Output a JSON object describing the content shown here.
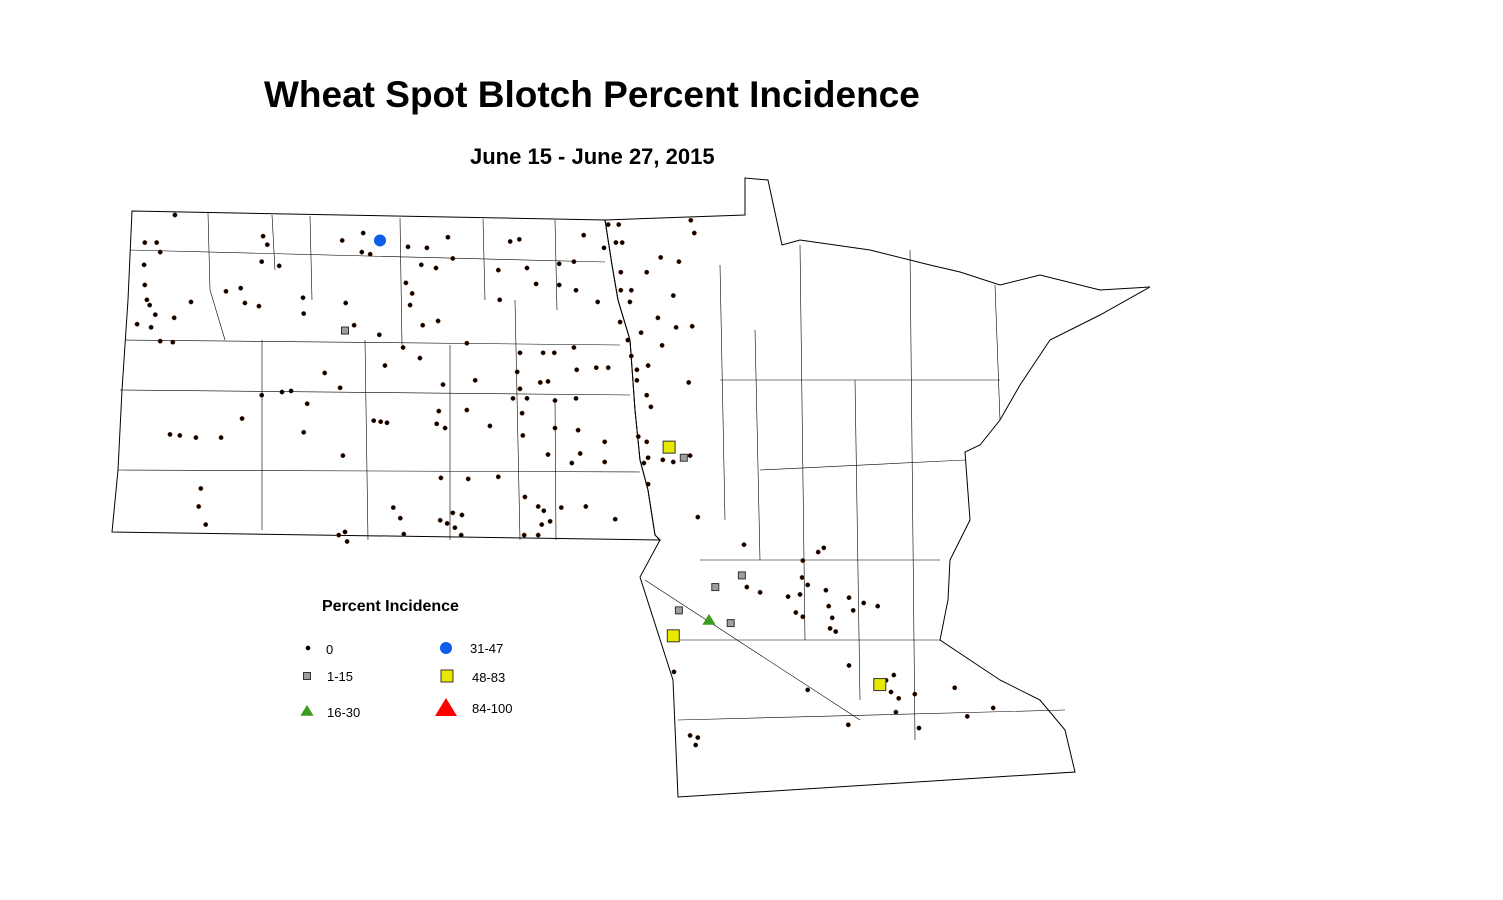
{
  "title": "Wheat Spot Blotch Percent Incidence",
  "subtitle": "June 15 - June 27, 2015",
  "legend": {
    "title": "Percent Incidence",
    "classes": [
      {
        "label": "0",
        "symbol": "dot",
        "color": "#000000"
      },
      {
        "label": "1-15",
        "symbol": "square",
        "color": "#9e9e9e"
      },
      {
        "label": "16-30",
        "symbol": "triangle",
        "color": "#3c9a1e"
      },
      {
        "label": "31-47",
        "symbol": "circle",
        "color": "#0a5ee8"
      },
      {
        "label": "48-83",
        "symbol": "square",
        "color": "#e8e800"
      },
      {
        "label": "84-100",
        "symbol": "triangle",
        "color": "#ff0000"
      }
    ]
  },
  "observations": {
    "0": [
      [
        -103.33,
        49.0
      ],
      [
        -103.76,
        48.74
      ],
      [
        -103.59,
        48.74
      ],
      [
        -103.54,
        48.65
      ],
      [
        -103.77,
        48.53
      ],
      [
        -102.07,
        48.8
      ],
      [
        -102.01,
        48.72
      ],
      [
        -102.09,
        48.56
      ],
      [
        -101.84,
        48.52
      ],
      [
        -100.94,
        48.76
      ],
      [
        -100.64,
        48.83
      ],
      [
        -100.66,
        48.65
      ],
      [
        -100.54,
        48.63
      ],
      [
        -100.0,
        48.7
      ],
      [
        -99.73,
        48.69
      ],
      [
        -99.43,
        48.79
      ],
      [
        -99.36,
        48.59
      ],
      [
        -99.6,
        48.5
      ],
      [
        -99.81,
        48.53
      ],
      [
        -98.54,
        48.75
      ],
      [
        -98.41,
        48.77
      ],
      [
        -98.71,
        48.48
      ],
      [
        -98.3,
        48.5
      ],
      [
        -97.84,
        48.54
      ],
      [
        -97.63,
        48.56
      ],
      [
        -97.49,
        48.81
      ],
      [
        -97.14,
        48.91
      ],
      [
        -96.99,
        48.91
      ],
      [
        -97.03,
        48.74
      ],
      [
        -96.94,
        48.74
      ],
      [
        -97.2,
        48.69
      ],
      [
        -95.96,
        48.95
      ],
      [
        -95.91,
        48.83
      ],
      [
        -96.13,
        48.56
      ],
      [
        -96.39,
        48.6
      ],
      [
        -102.6,
        48.28
      ],
      [
        -102.39,
        48.31
      ],
      [
        -102.33,
        48.17
      ],
      [
        -102.13,
        48.14
      ],
      [
        -103.76,
        48.34
      ],
      [
        -103.73,
        48.2
      ],
      [
        -103.69,
        48.15
      ],
      [
        -103.1,
        48.18
      ],
      [
        -101.5,
        48.22
      ],
      [
        -101.49,
        48.07
      ],
      [
        -100.89,
        48.17
      ],
      [
        -100.03,
        48.36
      ],
      [
        -99.94,
        48.26
      ],
      [
        -99.97,
        48.15
      ],
      [
        -99.79,
        47.96
      ],
      [
        -99.57,
        48.0
      ],
      [
        -98.69,
        48.2
      ],
      [
        -98.17,
        48.35
      ],
      [
        -97.84,
        48.34
      ],
      [
        -97.6,
        48.29
      ],
      [
        -97.29,
        48.18
      ],
      [
        -96.96,
        48.46
      ],
      [
        -96.96,
        48.29
      ],
      [
        -96.81,
        48.29
      ],
      [
        -96.83,
        48.18
      ],
      [
        -96.59,
        48.46
      ],
      [
        -96.21,
        48.24
      ],
      [
        -96.43,
        48.03
      ],
      [
        -96.17,
        47.94
      ],
      [
        -95.94,
        47.95
      ],
      [
        -103.87,
        47.97
      ],
      [
        -103.67,
        47.94
      ],
      [
        -103.54,
        47.81
      ],
      [
        -103.36,
        47.8
      ],
      [
        -103.61,
        48.06
      ],
      [
        -103.34,
        48.03
      ],
      [
        -100.77,
        47.96
      ],
      [
        -100.41,
        47.87
      ],
      [
        -100.07,
        47.75
      ],
      [
        -100.33,
        47.58
      ],
      [
        -99.16,
        47.79
      ],
      [
        -98.4,
        47.7
      ],
      [
        -98.07,
        47.7
      ],
      [
        -97.91,
        47.7
      ],
      [
        -97.63,
        47.75
      ],
      [
        -96.97,
        47.99
      ],
      [
        -96.86,
        47.82
      ],
      [
        -96.81,
        47.67
      ],
      [
        -96.73,
        47.54
      ],
      [
        -96.57,
        47.58
      ],
      [
        -96.37,
        47.77
      ],
      [
        -96.67,
        47.89
      ],
      [
        -101.19,
        47.51
      ],
      [
        -100.97,
        47.37
      ],
      [
        -101.67,
        47.34
      ],
      [
        -101.8,
        47.33
      ],
      [
        -102.09,
        47.3
      ],
      [
        -101.44,
        47.22
      ],
      [
        -99.83,
        47.65
      ],
      [
        -99.04,
        47.44
      ],
      [
        -99.5,
        47.4
      ],
      [
        -98.44,
        47.52
      ],
      [
        -98.4,
        47.36
      ],
      [
        -98.11,
        47.42
      ],
      [
        -98.0,
        47.43
      ],
      [
        -98.5,
        47.27
      ],
      [
        -98.3,
        47.27
      ],
      [
        -97.9,
        47.25
      ],
      [
        -97.59,
        47.54
      ],
      [
        -97.31,
        47.56
      ],
      [
        -97.14,
        47.56
      ],
      [
        -97.6,
        47.27
      ],
      [
        -96.73,
        47.44
      ],
      [
        -96.59,
        47.3
      ],
      [
        -96.53,
        47.19
      ],
      [
        -95.99,
        47.42
      ],
      [
        -103.4,
        46.93
      ],
      [
        -103.26,
        46.92
      ],
      [
        -103.03,
        46.9
      ],
      [
        -102.67,
        46.9
      ],
      [
        -102.37,
        47.08
      ],
      [
        -101.49,
        46.95
      ],
      [
        -100.49,
        47.06
      ],
      [
        -100.39,
        47.05
      ],
      [
        -100.3,
        47.04
      ],
      [
        -99.56,
        47.15
      ],
      [
        -99.59,
        47.03
      ],
      [
        -99.47,
        46.99
      ],
      [
        -99.16,
        47.16
      ],
      [
        -98.83,
        47.01
      ],
      [
        -98.37,
        47.13
      ],
      [
        -98.36,
        46.92
      ],
      [
        -97.9,
        46.99
      ],
      [
        -97.57,
        46.97
      ],
      [
        -97.54,
        46.75
      ],
      [
        -98.0,
        46.74
      ],
      [
        -97.66,
        46.66
      ],
      [
        -97.19,
        46.86
      ],
      [
        -97.19,
        46.67
      ],
      [
        -96.71,
        46.91
      ],
      [
        -96.59,
        46.86
      ],
      [
        -96.57,
        46.71
      ],
      [
        -96.63,
        46.66
      ],
      [
        -96.36,
        46.69
      ],
      [
        -96.21,
        46.67
      ],
      [
        -95.97,
        46.73
      ],
      [
        -100.93,
        46.73
      ],
      [
        -99.53,
        46.52
      ],
      [
        -99.14,
        46.51
      ],
      [
        -98.71,
        46.53
      ],
      [
        -102.96,
        46.42
      ],
      [
        -102.99,
        46.25
      ],
      [
        -102.89,
        46.08
      ],
      [
        -100.21,
        46.24
      ],
      [
        -100.11,
        46.14
      ],
      [
        -100.06,
        45.99
      ],
      [
        -99.54,
        46.12
      ],
      [
        -99.44,
        46.09
      ],
      [
        -99.36,
        46.19
      ],
      [
        -99.23,
        46.17
      ],
      [
        -99.33,
        46.05
      ],
      [
        -99.24,
        45.98
      ],
      [
        -98.33,
        46.34
      ],
      [
        -98.14,
        46.25
      ],
      [
        -98.06,
        46.21
      ],
      [
        -98.09,
        46.08
      ],
      [
        -97.97,
        46.11
      ],
      [
        -98.34,
        45.98
      ],
      [
        -98.14,
        45.98
      ],
      [
        -97.81,
        46.24
      ],
      [
        -97.46,
        46.25
      ],
      [
        -97.04,
        46.13
      ],
      [
        -96.57,
        46.46
      ],
      [
        -100.9,
        46.01
      ],
      [
        -100.87,
        45.92
      ],
      [
        -100.99,
        45.98
      ],
      [
        -95.86,
        46.15
      ],
      [
        -95.2,
        45.89
      ],
      [
        -95.16,
        45.49
      ],
      [
        -94.36,
        45.74
      ],
      [
        -94.14,
        45.82
      ],
      [
        -94.06,
        45.86
      ],
      [
        -94.37,
        45.58
      ],
      [
        -94.29,
        45.51
      ],
      [
        -94.4,
        45.42
      ],
      [
        -94.03,
        45.46
      ],
      [
        -94.57,
        45.4
      ],
      [
        -94.46,
        45.25
      ],
      [
        -94.36,
        45.21
      ],
      [
        -93.99,
        45.31
      ],
      [
        -93.94,
        45.2
      ],
      [
        -93.97,
        45.1
      ],
      [
        -93.89,
        45.07
      ],
      [
        -93.7,
        45.39
      ],
      [
        -93.49,
        45.34
      ],
      [
        -93.29,
        45.31
      ],
      [
        -93.64,
        45.27
      ],
      [
        -96.2,
        44.69
      ],
      [
        -95.97,
        44.09
      ],
      [
        -95.86,
        44.07
      ],
      [
        -95.89,
        44.0
      ],
      [
        -93.7,
        44.75
      ],
      [
        -94.29,
        44.52
      ],
      [
        -93.71,
        44.19
      ],
      [
        -93.17,
        44.61
      ],
      [
        -93.06,
        44.66
      ],
      [
        -93.1,
        44.5
      ],
      [
        -92.99,
        44.44
      ],
      [
        -93.03,
        44.31
      ],
      [
        -92.76,
        44.48
      ],
      [
        -92.19,
        44.54
      ],
      [
        -92.01,
        44.27
      ],
      [
        -91.64,
        44.35
      ],
      [
        -92.7,
        44.16
      ],
      [
        -94.97,
        45.44
      ]
    ],
    "1-15": [
      [
        -100.9,
        47.91
      ],
      [
        -96.06,
        46.71
      ],
      [
        -95.23,
        45.6
      ],
      [
        -95.61,
        45.49
      ],
      [
        -96.13,
        45.27
      ],
      [
        -95.39,
        45.15
      ]
    ],
    "16-30": [
      [
        -95.7,
        45.18
      ]
    ],
    "31-47": [
      [
        -100.4,
        48.76
      ]
    ],
    "48-83": [
      [
        -96.27,
        46.81
      ],
      [
        -96.21,
        45.03
      ],
      [
        -93.26,
        44.57
      ]
    ],
    "84-100": []
  }
}
